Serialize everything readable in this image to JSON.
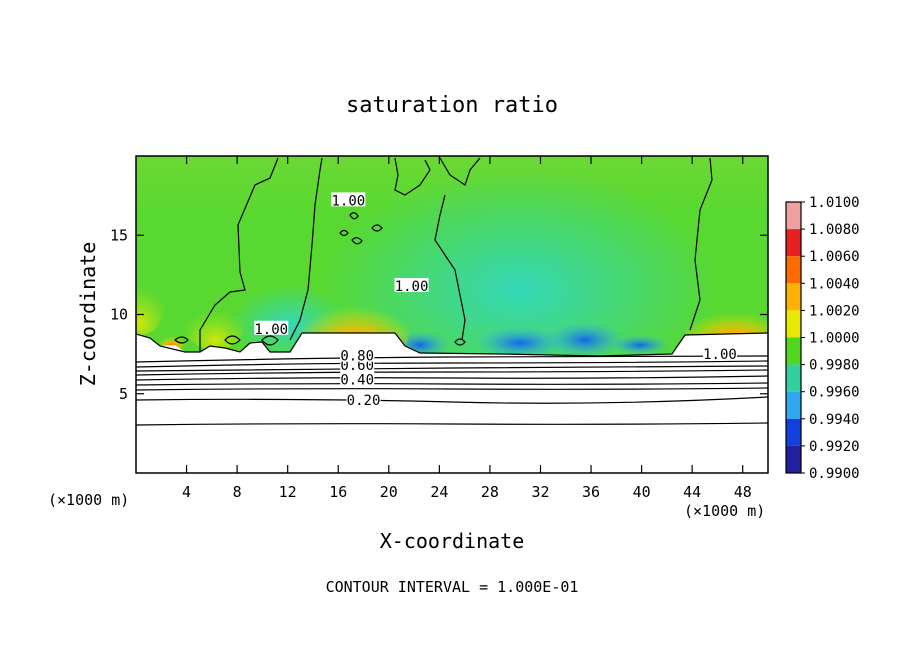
{
  "chart_data": {
    "type": "heatmap",
    "title": "saturation ratio",
    "xlabel": "X-coordinate",
    "ylabel": "Z-coordinate",
    "x_unit_left": "(×1000 m)",
    "x_unit_right": "(×1000 m)",
    "xlim": [
      0,
      50
    ],
    "ylim": [
      0,
      20
    ],
    "x_ticks": [
      4,
      8,
      12,
      16,
      20,
      24,
      28,
      32,
      36,
      40,
      44,
      48
    ],
    "y_ticks": [
      5,
      10,
      15
    ],
    "footer": "CONTOUR INTERVAL = 1.000E-01",
    "colorbar": {
      "range": [
        0.99,
        1.01
      ],
      "labels": [
        "1.0100",
        "1.0080",
        "1.0060",
        "1.0040",
        "1.0020",
        "1.0000",
        "0.9980",
        "0.9960",
        "0.9940",
        "0.9920",
        "0.9900"
      ],
      "colors": [
        "#f0a0a0",
        "#e82020",
        "#ff6a00",
        "#ffb000",
        "#e8e800",
        "#50d820",
        "#30d0a0",
        "#30a8f0",
        "#1040e0",
        "#2020a0"
      ]
    },
    "contour_labels": [
      {
        "text": "0.20",
        "x": 18.0,
        "y": 4.6
      },
      {
        "text": "0.40",
        "x": 17.5,
        "y": 5.9
      },
      {
        "text": "0.60",
        "x": 17.5,
        "y": 6.8
      },
      {
        "text": "0.80",
        "x": 17.5,
        "y": 7.4
      },
      {
        "text": "1.00",
        "x": 21.8,
        "y": 11.8
      },
      {
        "text": "1.00",
        "x": 10.7,
        "y": 9.1
      },
      {
        "text": "1.00",
        "x": 16.8,
        "y": 17.2
      },
      {
        "text": "1.00",
        "x": 46.2,
        "y": 7.5
      }
    ]
  }
}
